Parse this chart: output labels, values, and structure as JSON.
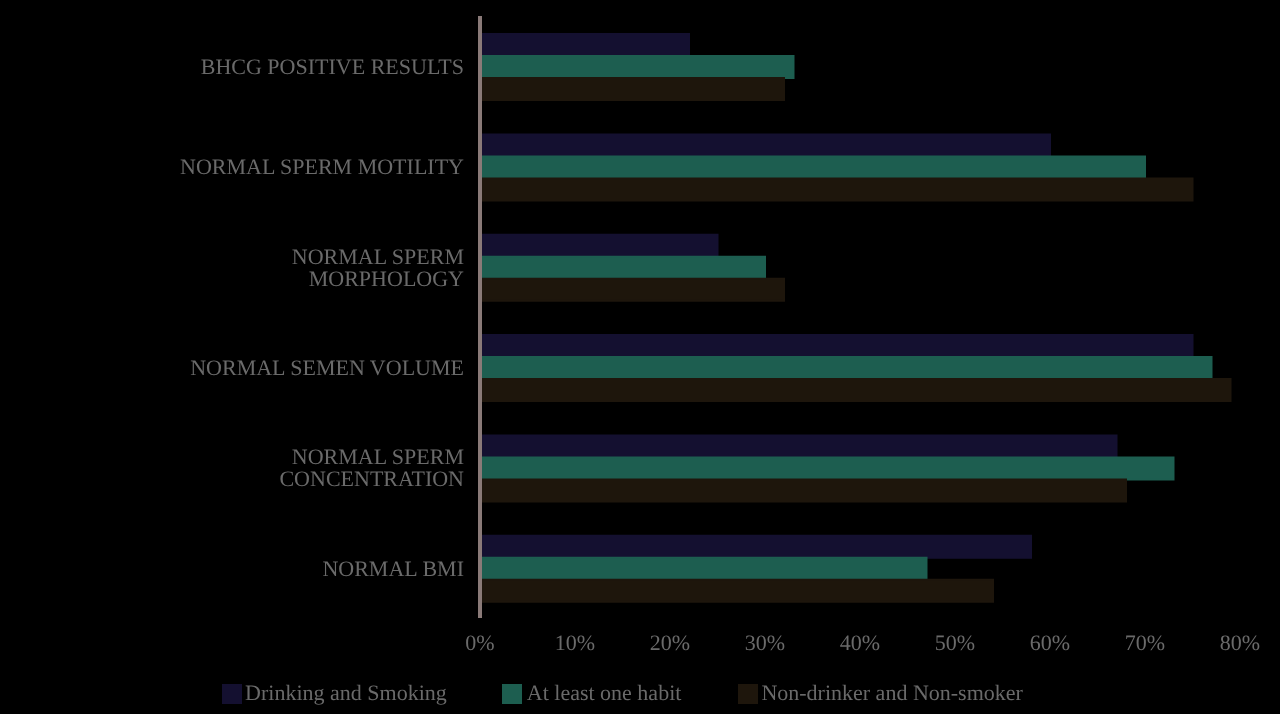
{
  "chart_data": {
    "type": "bar",
    "orientation": "horizontal",
    "categories": [
      "BHCG POSITIVE RESULTS",
      "NORMAL SPERM MOTILITY",
      "NORMAL SPERM MORPHOLOGY",
      "NORMAL SEMEN VOLUME",
      "NORMAL SPERM CONCENTRATION",
      "NORMAL BMI"
    ],
    "series": [
      {
        "name": "Drinking and Smoking",
        "color": "#141030",
        "values": [
          22,
          60,
          25,
          75,
          67,
          58
        ]
      },
      {
        "name": "At least one habit",
        "color": "#1d5e50",
        "values": [
          33,
          70,
          30,
          77,
          73,
          47
        ]
      },
      {
        "name": "Non-drinker and Non-smoker",
        "color": "#1e160c",
        "values": [
          32,
          75,
          32,
          79,
          68,
          54
        ]
      }
    ],
    "xlim": [
      0,
      80
    ],
    "xticks": [
      {
        "value": 0,
        "label": "0%"
      },
      {
        "value": 10,
        "label": "10%"
      },
      {
        "value": 20,
        "label": "20%"
      },
      {
        "value": 30,
        "label": "30%"
      },
      {
        "value": 40,
        "label": "40%"
      },
      {
        "value": 50,
        "label": "50%"
      },
      {
        "value": 60,
        "label": "60%"
      },
      {
        "value": 70,
        "label": "70%"
      },
      {
        "value": 80,
        "label": "80%"
      }
    ],
    "grid": false,
    "legend": "bottom"
  }
}
